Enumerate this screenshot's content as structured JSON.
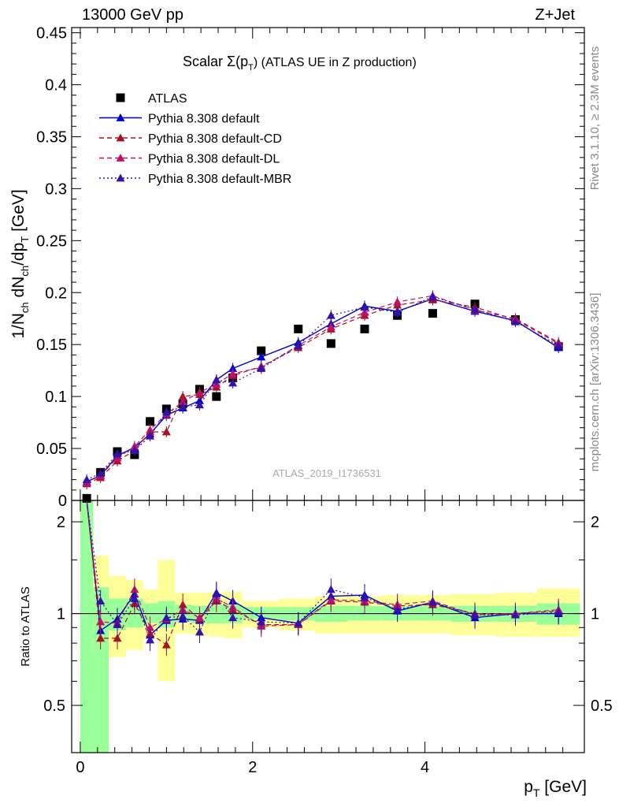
{
  "header": {
    "left": "13000 GeV pp",
    "right": "Z+Jet"
  },
  "side_text": {
    "rivet": "Rivet 3.1.10, ≥ 2.3M events",
    "mcplots": "mcplots.cern.ch [arXiv:1306.3436]"
  },
  "watermark": "ATLAS_2019_I1736531",
  "chart_data": [
    {
      "type": "scatter",
      "title_main": "Scalar Σ(p",
      "title_sub": "T",
      "title_tail": ") (ATLAS UE in Z production)",
      "ylabel": "1/N_ch dN_ch/dp_T [GeV]",
      "xlabel": "",
      "xlim": [
        -0.1,
        5.85
      ],
      "ylim": [
        0,
        0.455
      ],
      "yticks": [
        0,
        0.05,
        0.1,
        0.15,
        0.2,
        0.25,
        0.3,
        0.35,
        0.4,
        0.45
      ],
      "ytick_labels": [
        "0",
        "0.05",
        "0.1",
        "0.15",
        "0.2",
        "0.25",
        "0.3",
        "0.35",
        "0.4",
        "0.45"
      ],
      "legend_position": "top-left",
      "x": [
        0.075,
        0.235,
        0.43,
        0.63,
        0.81,
        1.0,
        1.19,
        1.385,
        1.58,
        1.77,
        2.1,
        2.53,
        2.91,
        3.3,
        3.68,
        4.09,
        4.58,
        5.05,
        5.55
      ],
      "series": [
        {
          "name": "ATLAS",
          "color": "#000000",
          "marker": "square",
          "line": "none",
          "values": [
            0.002,
            0.027,
            0.047,
            0.044,
            0.076,
            0.088,
            0.093,
            0.107,
            0.1,
            0.118,
            0.144,
            0.165,
            0.151,
            0.165,
            0.178,
            0.18,
            0.189,
            0.174,
            0.148
          ]
        },
        {
          "name": "Pythia 8.308 default",
          "color": "#0000cc",
          "marker": "triangle",
          "line": "solid",
          "values": [
            0.018,
            0.024,
            0.043,
            0.051,
            0.064,
            0.082,
            0.089,
            0.096,
            0.116,
            0.127,
            0.138,
            0.152,
            0.17,
            0.187,
            0.182,
            0.194,
            0.182,
            0.173,
            0.147
          ]
        },
        {
          "name": "Pythia 8.308 default-CD",
          "color": "#aa1122",
          "marker": "triangle",
          "line": "dashed",
          "values": [
            0.016,
            0.022,
            0.038,
            0.048,
            0.066,
            0.066,
            0.1,
            0.102,
            0.109,
            0.12,
            0.129,
            0.147,
            0.165,
            0.178,
            0.188,
            0.193,
            0.186,
            0.174,
            0.151
          ]
        },
        {
          "name": "Pythia 8.308 default-DL",
          "color": "#c0106a",
          "marker": "triangle",
          "line": "dashed",
          "values": [
            0.017,
            0.024,
            0.041,
            0.052,
            0.068,
            0.083,
            0.095,
            0.104,
            0.112,
            0.122,
            0.128,
            0.149,
            0.167,
            0.181,
            0.191,
            0.197,
            0.183,
            0.175,
            0.152
          ]
        },
        {
          "name": "Pythia 8.308 default-MBR",
          "color": "#3311aa",
          "marker": "triangle",
          "line": "dotted",
          "values": [
            0.02,
            0.026,
            0.045,
            0.048,
            0.062,
            0.085,
            0.09,
            0.092,
            0.116,
            0.113,
            0.127,
            0.149,
            0.178,
            0.186,
            0.181,
            0.196,
            0.184,
            0.172,
            0.149
          ]
        }
      ]
    },
    {
      "type": "scatter",
      "ylabel": "Ratio to ATLAS",
      "xlabel": "p_T [GeV]",
      "xlim": [
        -0.1,
        5.85
      ],
      "ylim": [
        0.35,
        2.35
      ],
      "xticks": [
        0,
        2,
        4
      ],
      "xtick_labels": [
        "0",
        "2",
        "4"
      ],
      "yticks": [
        0.5,
        1,
        2
      ],
      "ytick_labels": [
        "0.5",
        "1",
        "2"
      ],
      "bins": [
        [
          0.0,
          0.15
        ],
        [
          0.15,
          0.33
        ],
        [
          0.33,
          0.53
        ],
        [
          0.53,
          0.73
        ],
        [
          0.73,
          0.9
        ],
        [
          0.9,
          1.1
        ],
        [
          1.1,
          1.29
        ],
        [
          1.29,
          1.49
        ],
        [
          1.49,
          1.68
        ],
        [
          1.68,
          1.88
        ],
        [
          1.88,
          2.31
        ],
        [
          2.31,
          2.72
        ],
        [
          2.72,
          3.1
        ],
        [
          3.1,
          3.49
        ],
        [
          3.49,
          3.88
        ],
        [
          3.88,
          4.3
        ],
        [
          4.3,
          4.82
        ],
        [
          4.82,
          5.3
        ],
        [
          5.3,
          5.8
        ]
      ],
      "stat_band": [
        [
          0.35,
          2.35
        ],
        [
          0.35,
          1.22
        ],
        [
          0.88,
          1.12
        ],
        [
          0.9,
          1.12
        ],
        [
          0.93,
          1.08
        ],
        [
          0.9,
          1.1
        ],
        [
          0.94,
          1.07
        ],
        [
          0.93,
          1.06
        ],
        [
          0.93,
          1.07
        ],
        [
          0.93,
          1.07
        ],
        [
          0.96,
          1.05
        ],
        [
          0.95,
          1.05
        ],
        [
          0.94,
          1.06
        ],
        [
          0.95,
          1.06
        ],
        [
          0.95,
          1.06
        ],
        [
          0.95,
          1.06
        ],
        [
          0.94,
          1.06
        ],
        [
          0.94,
          1.06
        ],
        [
          0.92,
          1.08
        ]
      ],
      "total_band": [
        [
          0.35,
          2.35
        ],
        [
          0.54,
          1.55
        ],
        [
          0.72,
          1.33
        ],
        [
          0.76,
          1.29
        ],
        [
          0.83,
          1.2
        ],
        [
          0.6,
          1.5
        ],
        [
          0.86,
          1.17
        ],
        [
          0.85,
          1.17
        ],
        [
          0.84,
          1.18
        ],
        [
          0.83,
          1.18
        ],
        [
          0.9,
          1.1
        ],
        [
          0.88,
          1.12
        ],
        [
          0.86,
          1.14
        ],
        [
          0.86,
          1.14
        ],
        [
          0.86,
          1.15
        ],
        [
          0.86,
          1.15
        ],
        [
          0.85,
          1.16
        ],
        [
          0.84,
          1.17
        ],
        [
          0.84,
          1.21
        ]
      ],
      "series": [
        {
          "name": "Pythia 8.308 default",
          "color": "#0000cc",
          "line": "solid",
          "values": [
            2.35,
            0.88,
            0.96,
            1.16,
            0.85,
            0.95,
            0.96,
            0.95,
            1.17,
            1.1,
            0.97,
            0.93,
            1.14,
            1.15,
            1.02,
            1.09,
            0.97,
            1.0,
            1.0
          ]
        },
        {
          "name": "Pythia 8.308 default-CD",
          "color": "#aa1122",
          "line": "dashed",
          "values": [
            2.35,
            0.83,
            0.83,
            1.08,
            0.86,
            0.79,
            1.07,
            0.96,
            1.1,
            1.03,
            0.92,
            0.92,
            1.1,
            1.09,
            1.06,
            1.07,
            1.0,
            1.0,
            1.02
          ]
        },
        {
          "name": "Pythia 8.308 default-DL",
          "color": "#c0106a",
          "line": "dashed",
          "values": [
            2.35,
            0.94,
            0.93,
            1.2,
            0.9,
            0.96,
            1.03,
            0.97,
            1.12,
            1.05,
            0.91,
            0.92,
            1.11,
            1.1,
            1.07,
            1.1,
            0.99,
            1.0,
            1.03
          ]
        },
        {
          "name": "Pythia 8.308 default-MBR",
          "color": "#3311aa",
          "line": "dotted",
          "values": [
            2.35,
            1.1,
            0.92,
            1.12,
            0.82,
            0.97,
            0.98,
            0.87,
            1.16,
            0.97,
            0.94,
            0.93,
            1.2,
            1.13,
            1.03,
            1.09,
            0.99,
            0.99,
            1.01
          ]
        }
      ]
    }
  ]
}
